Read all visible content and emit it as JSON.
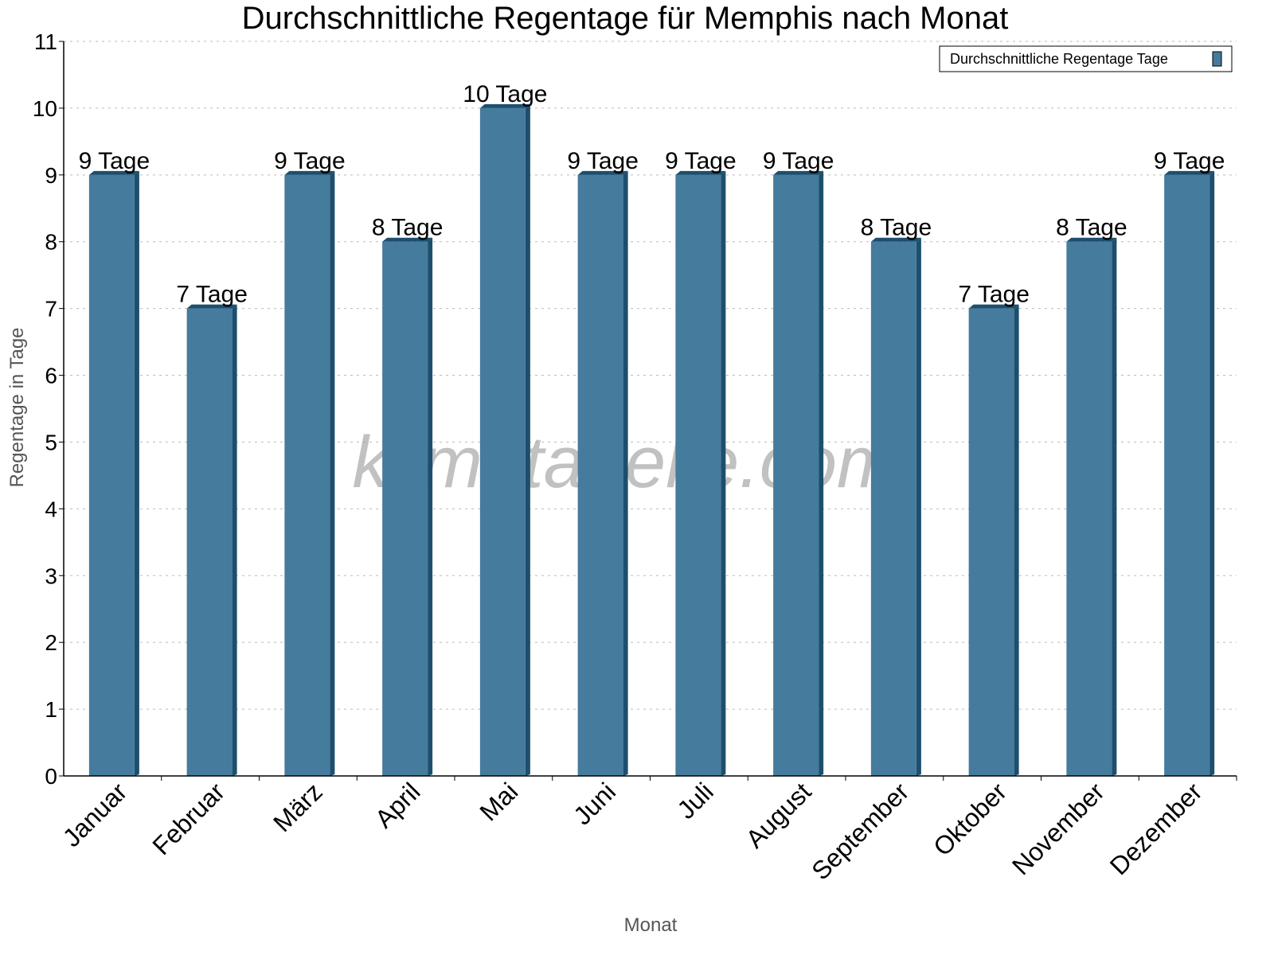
{
  "chart_data": {
    "type": "bar",
    "title": "Durchschnittliche Regentage für Memphis nach Monat",
    "xlabel": "Monat",
    "ylabel": "Regentage in Tage",
    "categories": [
      "Januar",
      "Februar",
      "März",
      "April",
      "Mai",
      "Juni",
      "Juli",
      "August",
      "September",
      "Oktober",
      "November",
      "Dezember"
    ],
    "series": [
      {
        "name": "Durchschnittliche Regentage Tage",
        "values": [
          9,
          7,
          9,
          8,
          10,
          9,
          9,
          9,
          8,
          7,
          8,
          9
        ]
      }
    ],
    "data_labels": [
      "9 Tage",
      "7 Tage",
      "9 Tage",
      "8 Tage",
      "10 Tage",
      "9 Tage",
      "9 Tage",
      "9 Tage",
      "8 Tage",
      "7 Tage",
      "8 Tage",
      "9 Tage"
    ],
    "ylim": [
      0,
      11
    ],
    "yticks": [
      "0",
      "1",
      "2",
      "3",
      "4",
      "5",
      "6",
      "7",
      "8",
      "9",
      "10",
      "11"
    ],
    "grid": true,
    "legend_position": "top-right",
    "colors": {
      "bar": "#457b9d",
      "bar_side": "#1d4e6e"
    },
    "watermark": "klimatabelle.com"
  }
}
